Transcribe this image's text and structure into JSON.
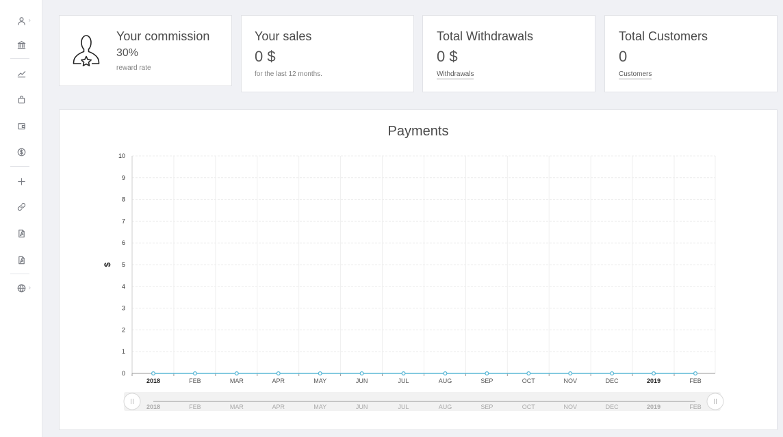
{
  "sidebar": {
    "items": [
      {
        "icon": "user-icon",
        "has_chevron": true
      },
      {
        "icon": "bank-icon",
        "has_chevron": false
      },
      {
        "icon": "chart-line-icon",
        "has_chevron": false
      },
      {
        "icon": "shopping-bag-icon",
        "has_chevron": false
      },
      {
        "icon": "wallet-icon",
        "has_chevron": false
      },
      {
        "icon": "dollar-circle-icon",
        "has_chevron": false
      },
      {
        "icon": "plus-icon",
        "has_chevron": false
      },
      {
        "icon": "link-icon",
        "has_chevron": false
      },
      {
        "icon": "pdf-file-icon",
        "has_chevron": false
      },
      {
        "icon": "pdf-file-icon",
        "has_chevron": false
      },
      {
        "icon": "globe-icon",
        "has_chevron": true
      }
    ],
    "chevron": "›"
  },
  "cards": {
    "commission": {
      "title": "Your commission",
      "value": "30%",
      "sub": "reward rate",
      "icon": "user-star-icon"
    },
    "sales": {
      "title": "Your sales",
      "value": "0 $",
      "sub": "for the last 12 months."
    },
    "withdrawals": {
      "title": "Total Withdrawals",
      "value": "0 $",
      "link": "Withdrawals"
    },
    "customers": {
      "title": "Total Customers",
      "value": "0",
      "link": "Customers"
    }
  },
  "chart_data": {
    "type": "line",
    "title": "Payments",
    "ylabel": "$",
    "xlabel": "",
    "ylim": [
      0,
      10
    ],
    "yticks": [
      "0",
      "1",
      "2",
      "3",
      "4",
      "5",
      "6",
      "7",
      "8",
      "9",
      "10"
    ],
    "categories": [
      "2018",
      "FEB",
      "MAR",
      "APR",
      "MAY",
      "JUN",
      "JUL",
      "AUG",
      "SEP",
      "OCT",
      "NOV",
      "DEC",
      "2019",
      "FEB"
    ],
    "bold_categories": [
      "2018",
      "2019"
    ],
    "series": [
      {
        "values": [
          0,
          0,
          0,
          0,
          0,
          0,
          0,
          0,
          0,
          0,
          0,
          0,
          0,
          0
        ],
        "color": "#5bb8d6"
      }
    ],
    "grid": true,
    "navigator": true
  },
  "colors": {
    "accent": "#5bb8d6",
    "background": "#f0f1f5",
    "card": "#ffffff"
  }
}
